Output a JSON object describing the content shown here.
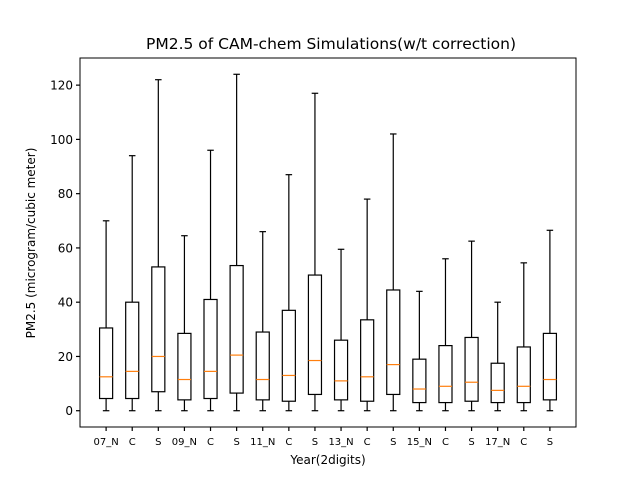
{
  "chart_data": {
    "type": "boxplot",
    "title": "PM2.5 of CAM-chem Simulations(w/t correction)",
    "xlabel": "Year(2digits)",
    "ylabel": "PM2.5 (microgram/cubic meter)",
    "ylim": [
      -6,
      130
    ],
    "yticks": [
      0,
      20,
      40,
      60,
      80,
      100,
      120
    ],
    "grid": false,
    "median_color": "#ff7f0e",
    "box_color": "#000000",
    "categories": [
      "07_N",
      "C",
      "S",
      "09_N",
      "C",
      "S",
      "11_N",
      "C",
      "S",
      "13_N",
      "C",
      "S",
      "15_N",
      "C",
      "S",
      "17_N",
      "C",
      "S"
    ],
    "boxes": [
      {
        "whislo": 0,
        "q1": 4.5,
        "med": 12.5,
        "q3": 30.5,
        "whishi": 70
      },
      {
        "whislo": 0,
        "q1": 4.5,
        "med": 14.5,
        "q3": 40,
        "whishi": 94
      },
      {
        "whislo": 0,
        "q1": 7,
        "med": 20,
        "q3": 53,
        "whishi": 122
      },
      {
        "whislo": 0,
        "q1": 4,
        "med": 11.5,
        "q3": 28.5,
        "whishi": 64.5
      },
      {
        "whislo": 0,
        "q1": 4.5,
        "med": 14.5,
        "q3": 41,
        "whishi": 96
      },
      {
        "whislo": 0,
        "q1": 6.5,
        "med": 20.5,
        "q3": 53.5,
        "whishi": 124
      },
      {
        "whislo": 0,
        "q1": 4,
        "med": 11.5,
        "q3": 29,
        "whishi": 66
      },
      {
        "whislo": 0,
        "q1": 3.5,
        "med": 13,
        "q3": 37,
        "whishi": 87
      },
      {
        "whislo": 0,
        "q1": 6,
        "med": 18.5,
        "q3": 50,
        "whishi": 117
      },
      {
        "whislo": 0,
        "q1": 4,
        "med": 11,
        "q3": 26,
        "whishi": 59.5
      },
      {
        "whislo": 0,
        "q1": 3.5,
        "med": 12.5,
        "q3": 33.5,
        "whishi": 78
      },
      {
        "whislo": 0,
        "q1": 6,
        "med": 17,
        "q3": 44.5,
        "whishi": 102
      },
      {
        "whislo": 0,
        "q1": 3,
        "med": 8,
        "q3": 19,
        "whishi": 44
      },
      {
        "whislo": 0,
        "q1": 3,
        "med": 9,
        "q3": 24,
        "whishi": 56
      },
      {
        "whislo": 0,
        "q1": 3.5,
        "med": 10.5,
        "q3": 27,
        "whishi": 62.5
      },
      {
        "whislo": 0,
        "q1": 3,
        "med": 7.5,
        "q3": 17.5,
        "whishi": 40
      },
      {
        "whislo": 0,
        "q1": 3,
        "med": 9,
        "q3": 23.5,
        "whishi": 54.5
      },
      {
        "whislo": 0,
        "q1": 4,
        "med": 11.5,
        "q3": 28.5,
        "whishi": 66.5
      }
    ]
  }
}
